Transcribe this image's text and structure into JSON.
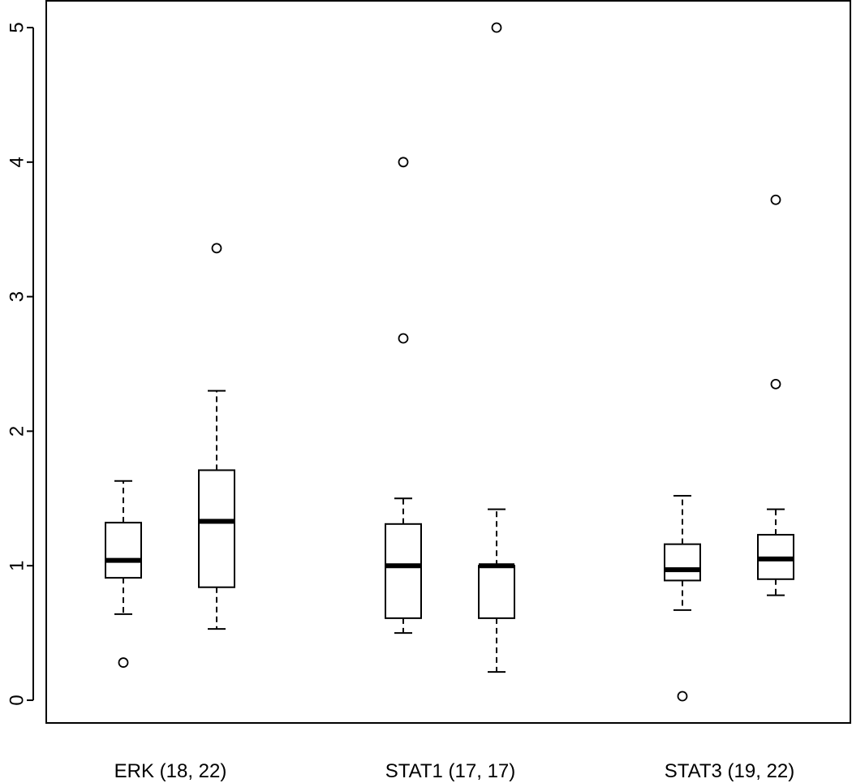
{
  "chart_data": {
    "type": "boxplot",
    "title": "",
    "xlabel": "",
    "ylabel": "",
    "ylim": [
      0,
      5
    ],
    "yticks": [
      0,
      1,
      2,
      3,
      4,
      5
    ],
    "ytick_labels": [
      "0",
      "1",
      "2",
      "3",
      "4",
      "5"
    ],
    "grid": false,
    "groups": [
      {
        "label": "ERK (18, 22)"
      },
      {
        "label": "STAT1 (17, 17)"
      },
      {
        "label": "STAT3 (19, 22)"
      }
    ],
    "boxes": [
      {
        "group": 0,
        "whisker_low": 0.64,
        "q1": 0.91,
        "median": 1.04,
        "q3": 1.32,
        "whisker_high": 1.63,
        "outliers": [
          0.28
        ]
      },
      {
        "group": 0,
        "whisker_low": 0.53,
        "q1": 0.84,
        "median": 1.33,
        "q3": 1.71,
        "whisker_high": 2.3,
        "outliers": [
          3.36
        ]
      },
      {
        "group": 1,
        "whisker_low": 0.5,
        "q1": 0.61,
        "median": 1.0,
        "q3": 1.31,
        "whisker_high": 1.5,
        "outliers": [
          2.69,
          4.0
        ]
      },
      {
        "group": 1,
        "whisker_low": 0.21,
        "q1": 0.61,
        "median": 1.0,
        "q3": 1.0,
        "whisker_high": 1.42,
        "outliers": [
          5.0
        ]
      },
      {
        "group": 2,
        "whisker_low": 0.67,
        "q1": 0.89,
        "median": 0.97,
        "q3": 1.16,
        "whisker_high": 1.52,
        "outliers": [
          0.03
        ]
      },
      {
        "group": 2,
        "whisker_low": 0.78,
        "q1": 0.9,
        "median": 1.05,
        "q3": 1.23,
        "whisker_high": 1.42,
        "outliers": [
          2.35,
          3.72
        ]
      }
    ]
  }
}
